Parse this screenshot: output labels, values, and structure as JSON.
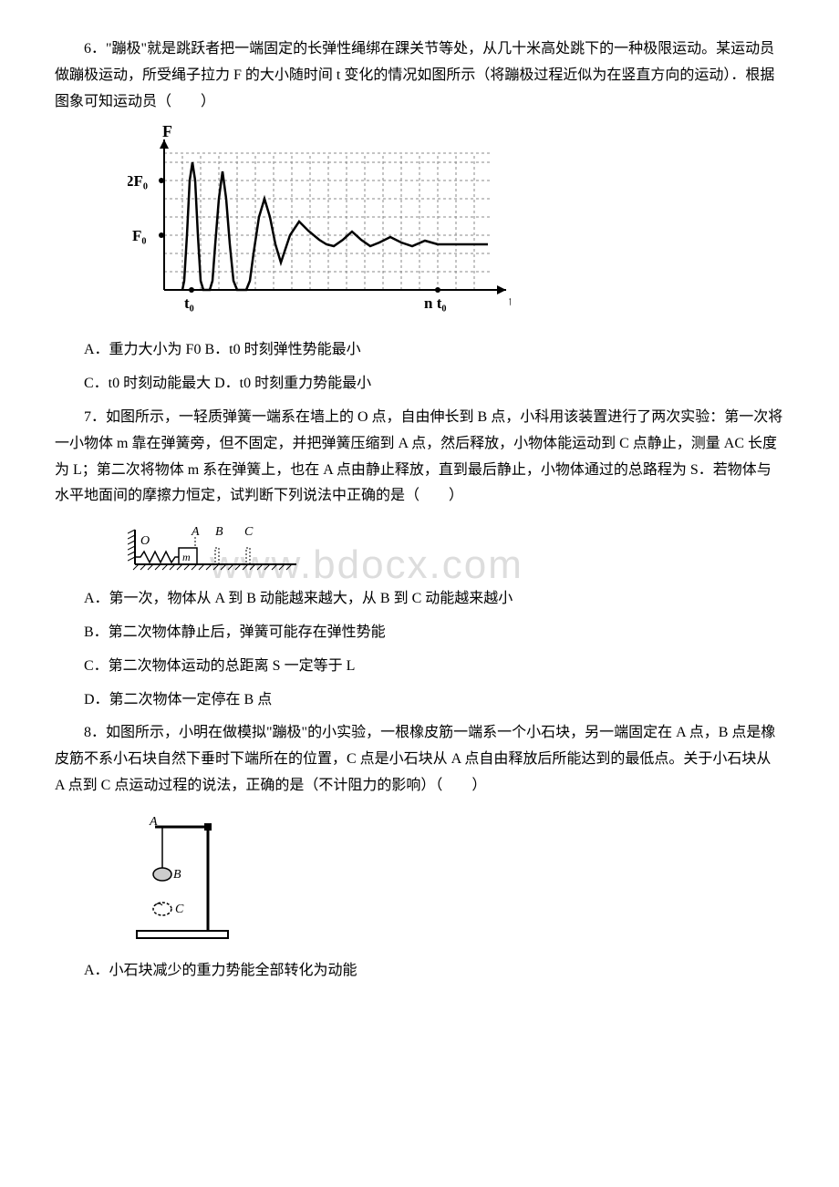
{
  "watermark": "www.bdocx.com",
  "q6": {
    "text": "6．\"蹦极\"就是跳跃者把一端固定的长弹性绳绑在踝关节等处，从几十米高处跳下的一种极限运动。某运动员做蹦极运动，所受绳子拉力 F 的大小随时间 t 变化的情况如图所示（将蹦极过程近似为在竖直方向的运动）．根据图象可知运动员（　　）",
    "chart": {
      "y_axis_label": "F",
      "x_axis_label": "t",
      "y_ticks": [
        "F₀",
        "2F₀"
      ],
      "x_ticks": [
        "t₀",
        "n t₀"
      ],
      "y_tick_positions": [
        60,
        120
      ],
      "y_max": 150,
      "x_max": 360,
      "grid_v_count": 18,
      "grid_h_count": 8,
      "grid_color": "#888888",
      "line_color": "#000000",
      "curve_points": [
        [
          20,
          0
        ],
        [
          22,
          10
        ],
        [
          25,
          60
        ],
        [
          28,
          120
        ],
        [
          31,
          140
        ],
        [
          34,
          120
        ],
        [
          37,
          60
        ],
        [
          40,
          10
        ],
        [
          43,
          0
        ],
        [
          50,
          0
        ],
        [
          53,
          10
        ],
        [
          56,
          50
        ],
        [
          60,
          100
        ],
        [
          64,
          130
        ],
        [
          68,
          100
        ],
        [
          72,
          50
        ],
        [
          76,
          10
        ],
        [
          80,
          0
        ],
        [
          90,
          0
        ],
        [
          94,
          10
        ],
        [
          98,
          40
        ],
        [
          104,
          80
        ],
        [
          110,
          100
        ],
        [
          116,
          80
        ],
        [
          122,
          50
        ],
        [
          128,
          30
        ],
        [
          138,
          60
        ],
        [
          148,
          75
        ],
        [
          158,
          65
        ],
        [
          170,
          55
        ],
        [
          178,
          50
        ],
        [
          186,
          48
        ],
        [
          196,
          55
        ],
        [
          206,
          64
        ],
        [
          216,
          55
        ],
        [
          226,
          48
        ],
        [
          236,
          52
        ],
        [
          248,
          58
        ],
        [
          260,
          52
        ],
        [
          272,
          48
        ],
        [
          286,
          54
        ],
        [
          300,
          50
        ],
        [
          320,
          50
        ],
        [
          340,
          50
        ],
        [
          355,
          50
        ]
      ]
    },
    "optA": "A．重力大小为 F0 B．t0 时刻弹性势能最小",
    "optC": "C．t0 时刻动能最大 D．t0 时刻重力势能最小"
  },
  "q7": {
    "text": "7．如图所示，一轻质弹簧一端系在墙上的 O 点，自由伸长到 B 点，小科用该装置进行了两次实验：第一次将一小物体 m 靠在弹簧旁，但不固定，并把弹簧压缩到 A 点，然后释放，小物体能运动到 C 点静止，测量 AC 长度为 L；第二次将物体 m 系在弹簧上，也在 A 点由静止释放，直到最后静止，小物体通过的总路程为 S．若物体与水平地面间的摩擦力恒定，试判断下列说法中正确的是（　　）",
    "diagram": {
      "labels": {
        "O": "O",
        "A": "A",
        "B": "B",
        "C": "C",
        "m": "m"
      }
    },
    "optA": "A．第一次，物体从 A 到 B 动能越来越大，从 B 到 C 动能越来越小",
    "optB": "B．第二次物体静止后，弹簧可能存在弹性势能",
    "optC": "C．第二次物体运动的总距离 S 一定等于 L",
    "optD": "D．第二次物体一定停在 B 点"
  },
  "q8": {
    "text": "8．如图所示，小明在做模拟\"蹦极\"的小实验，一根橡皮筋一端系一个小石块，另一端固定在 A 点，B 点是橡皮筋不系小石块自然下垂时下端所在的位置，C 点是小石块从 A 点自由释放后所能达到的最低点。关于小石块从 A 点到 C 点运动过程的说法，正确的是（不计阻力的影响）（　　）",
    "diagram": {
      "labels": {
        "A": "A",
        "B": "B",
        "C": "C"
      }
    },
    "optA": "A．小石块减少的重力势能全部转化为动能"
  }
}
